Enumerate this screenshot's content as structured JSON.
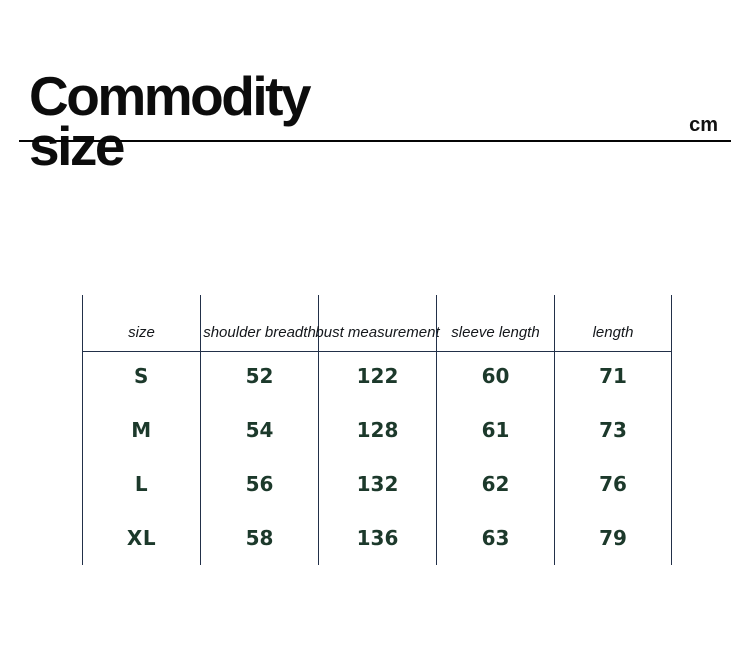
{
  "page": {
    "title_line1": "Commodity",
    "title_line2": "size",
    "unit": "cm"
  },
  "colors": {
    "title": "#0c0c0c",
    "table-line": "#223049",
    "header-text": "#15181c",
    "data-green": "#1c392b"
  },
  "chart_data": {
    "type": "table",
    "title": "Commodity size",
    "unit": "cm",
    "columns": [
      "size",
      "shoulder breadth",
      "bust measurement",
      "sleeve length",
      "length"
    ],
    "rows": [
      [
        "S",
        "52",
        "122",
        "60",
        "71"
      ],
      [
        "M",
        "54",
        "128",
        "61",
        "73"
      ],
      [
        "L",
        "56",
        "132",
        "62",
        "76"
      ],
      [
        "XL",
        "58",
        "136",
        "63",
        "79"
      ]
    ]
  }
}
